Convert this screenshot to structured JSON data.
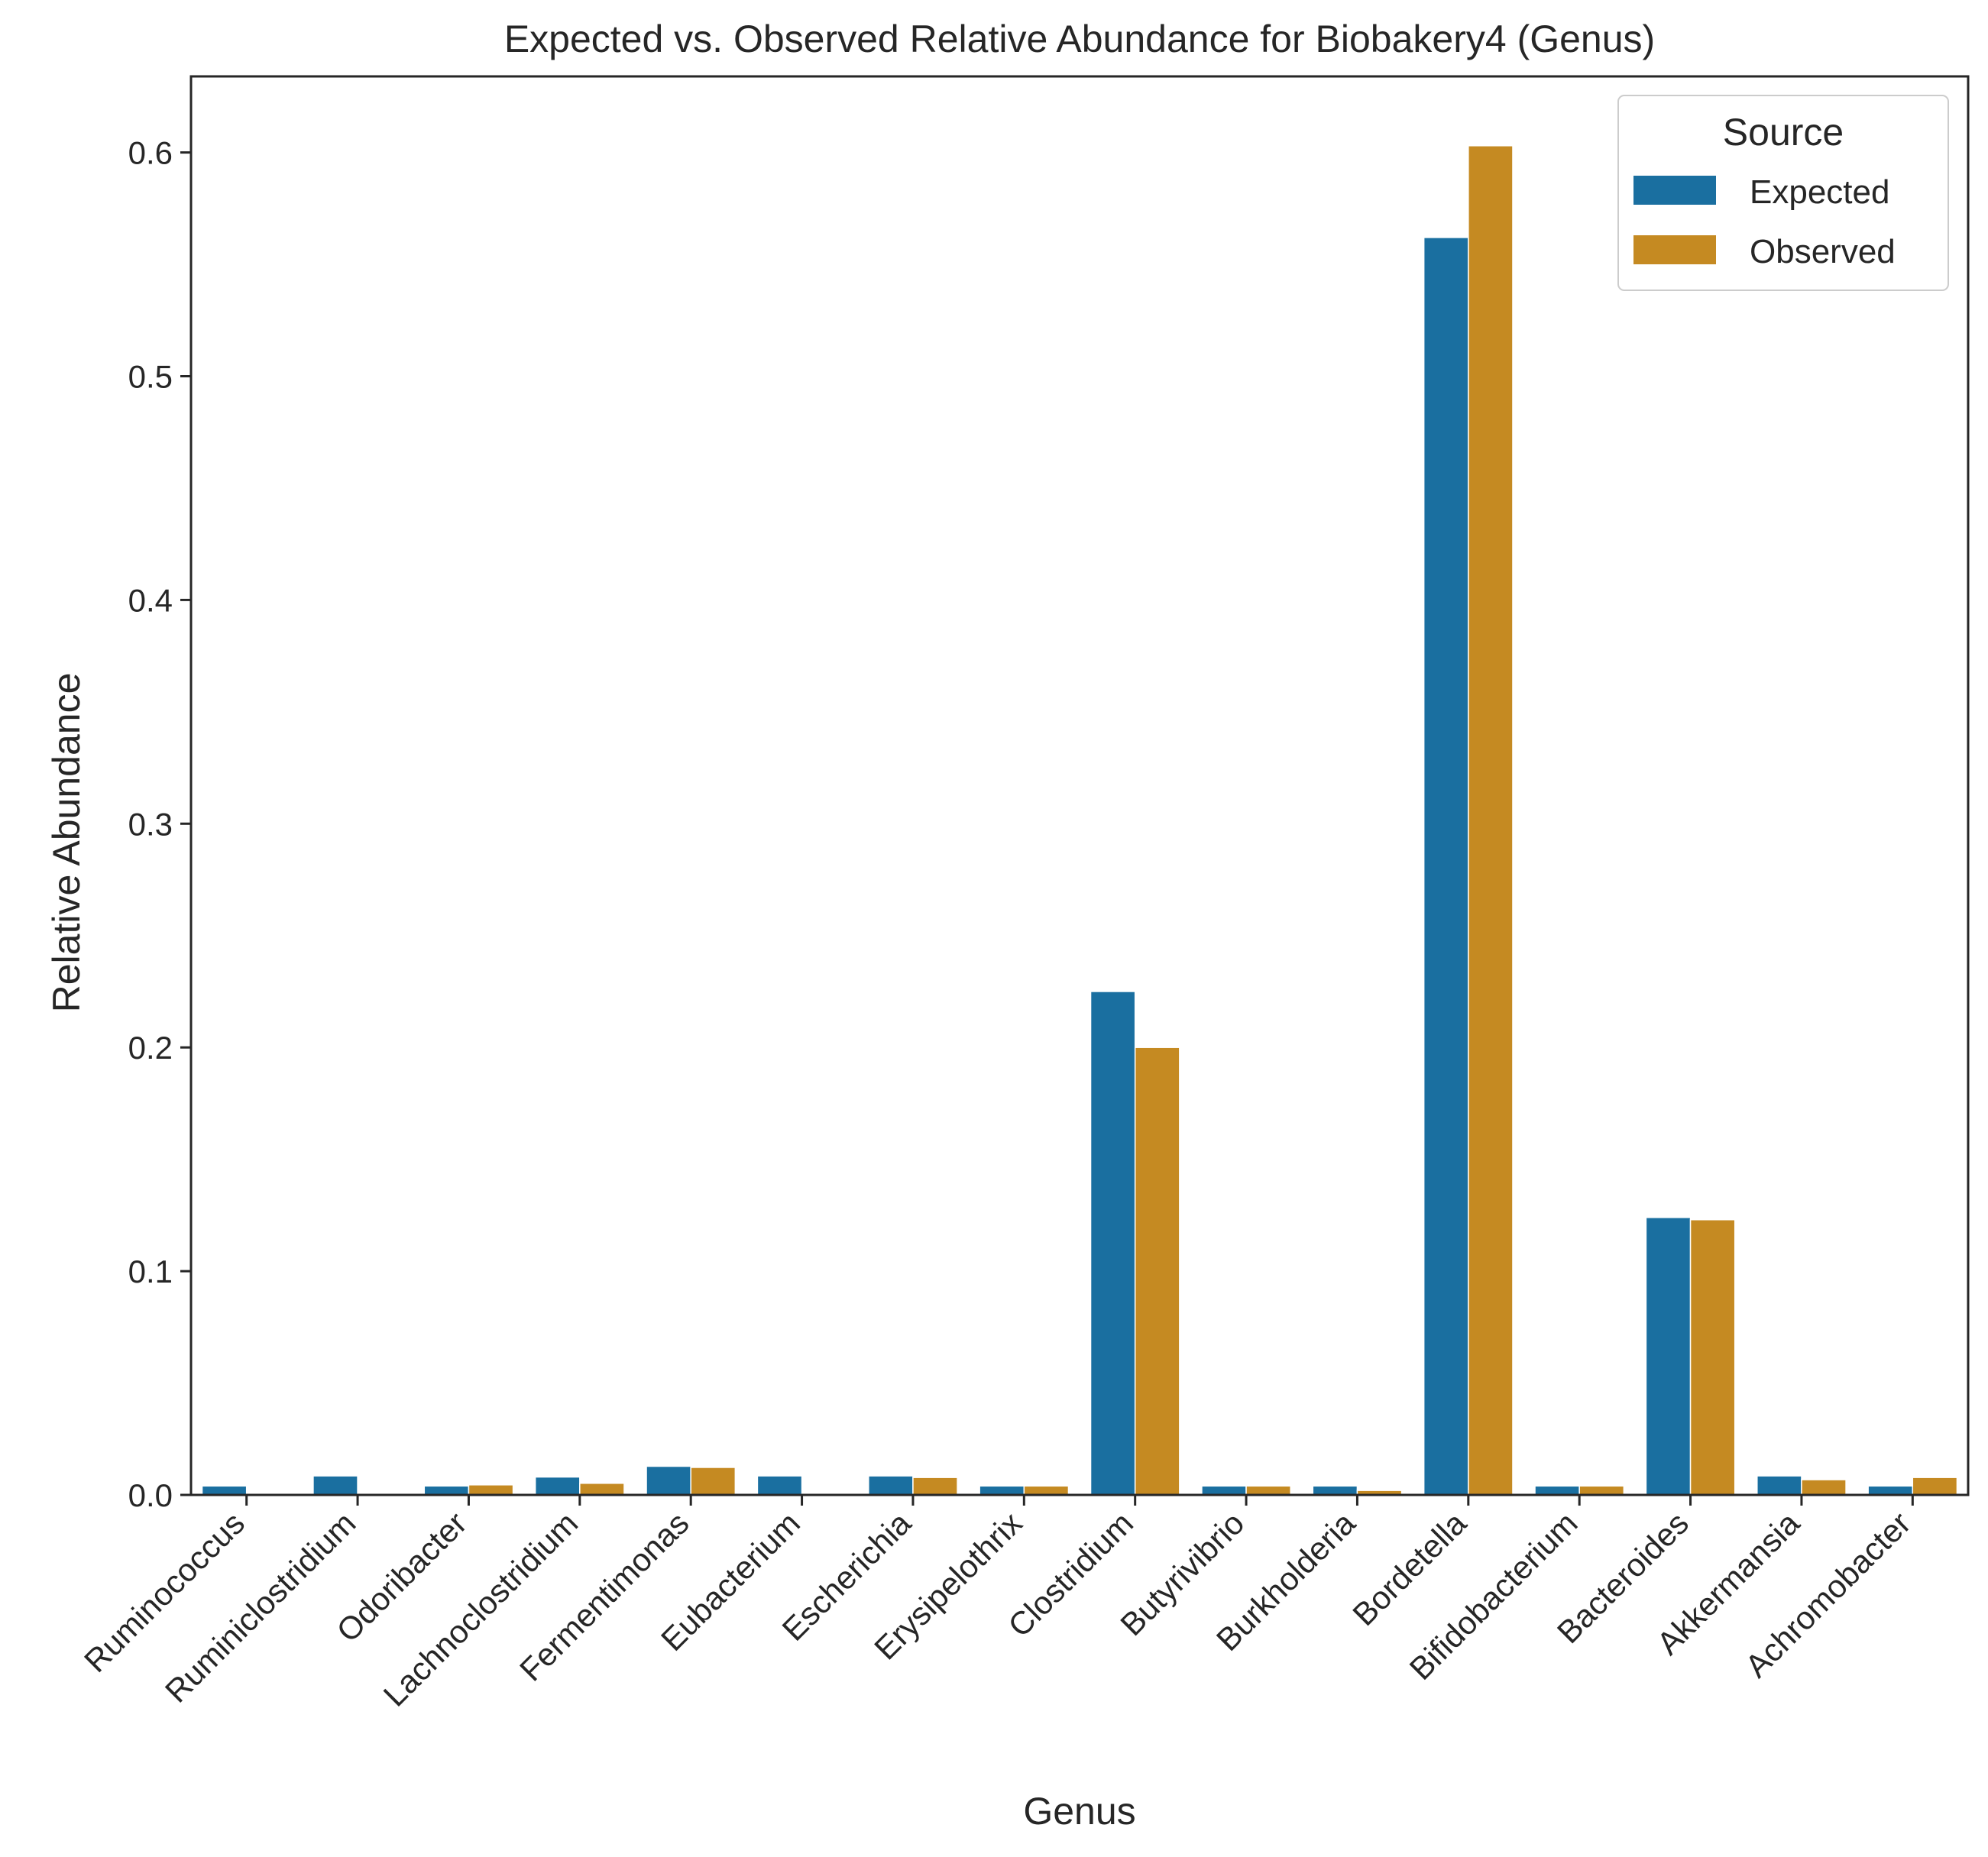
{
  "chart_data": {
    "type": "bar",
    "title": "Expected vs. Observed Relative Abundance for Biobakery4 (Genus)",
    "xlabel": "Genus",
    "ylabel": "Relative Abundance",
    "ylim": [
      0,
      0.634
    ],
    "yticks": [
      0.0,
      0.1,
      0.2,
      0.3,
      0.4,
      0.5,
      0.6
    ],
    "ytick_labels": [
      "0.0",
      "0.1",
      "0.2",
      "0.3",
      "0.4",
      "0.5",
      "0.6"
    ],
    "grid": false,
    "legend": {
      "title": "Source",
      "placement": "top-right"
    },
    "categories": [
      "Ruminococcus",
      "Ruminiclostridium",
      "Odoribacter",
      "Lachnoclostridium",
      "Fermentimonas",
      "Eubacterium",
      "Escherichia",
      "Erysipelothrix",
      "Clostridium",
      "Butyrivibrio",
      "Burkholderia",
      "Bordetella",
      "Bifidobacterium",
      "Bacteroides",
      "Akkermansia",
      "Achromobacter"
    ],
    "series": [
      {
        "name": "Expected",
        "color": "#1a6fa0",
        "values": [
          0.004,
          0.0085,
          0.004,
          0.008,
          0.0128,
          0.0085,
          0.0085,
          0.004,
          0.225,
          0.004,
          0.004,
          0.562,
          0.004,
          0.124,
          0.0085,
          0.004
        ]
      },
      {
        "name": "Observed",
        "color": "#c58a22",
        "values": [
          0.0,
          0.0,
          0.0045,
          0.0052,
          0.0123,
          0.0,
          0.0078,
          0.004,
          0.2,
          0.004,
          0.002,
          0.603,
          0.004,
          0.123,
          0.0068,
          0.0078
        ]
      }
    ]
  }
}
